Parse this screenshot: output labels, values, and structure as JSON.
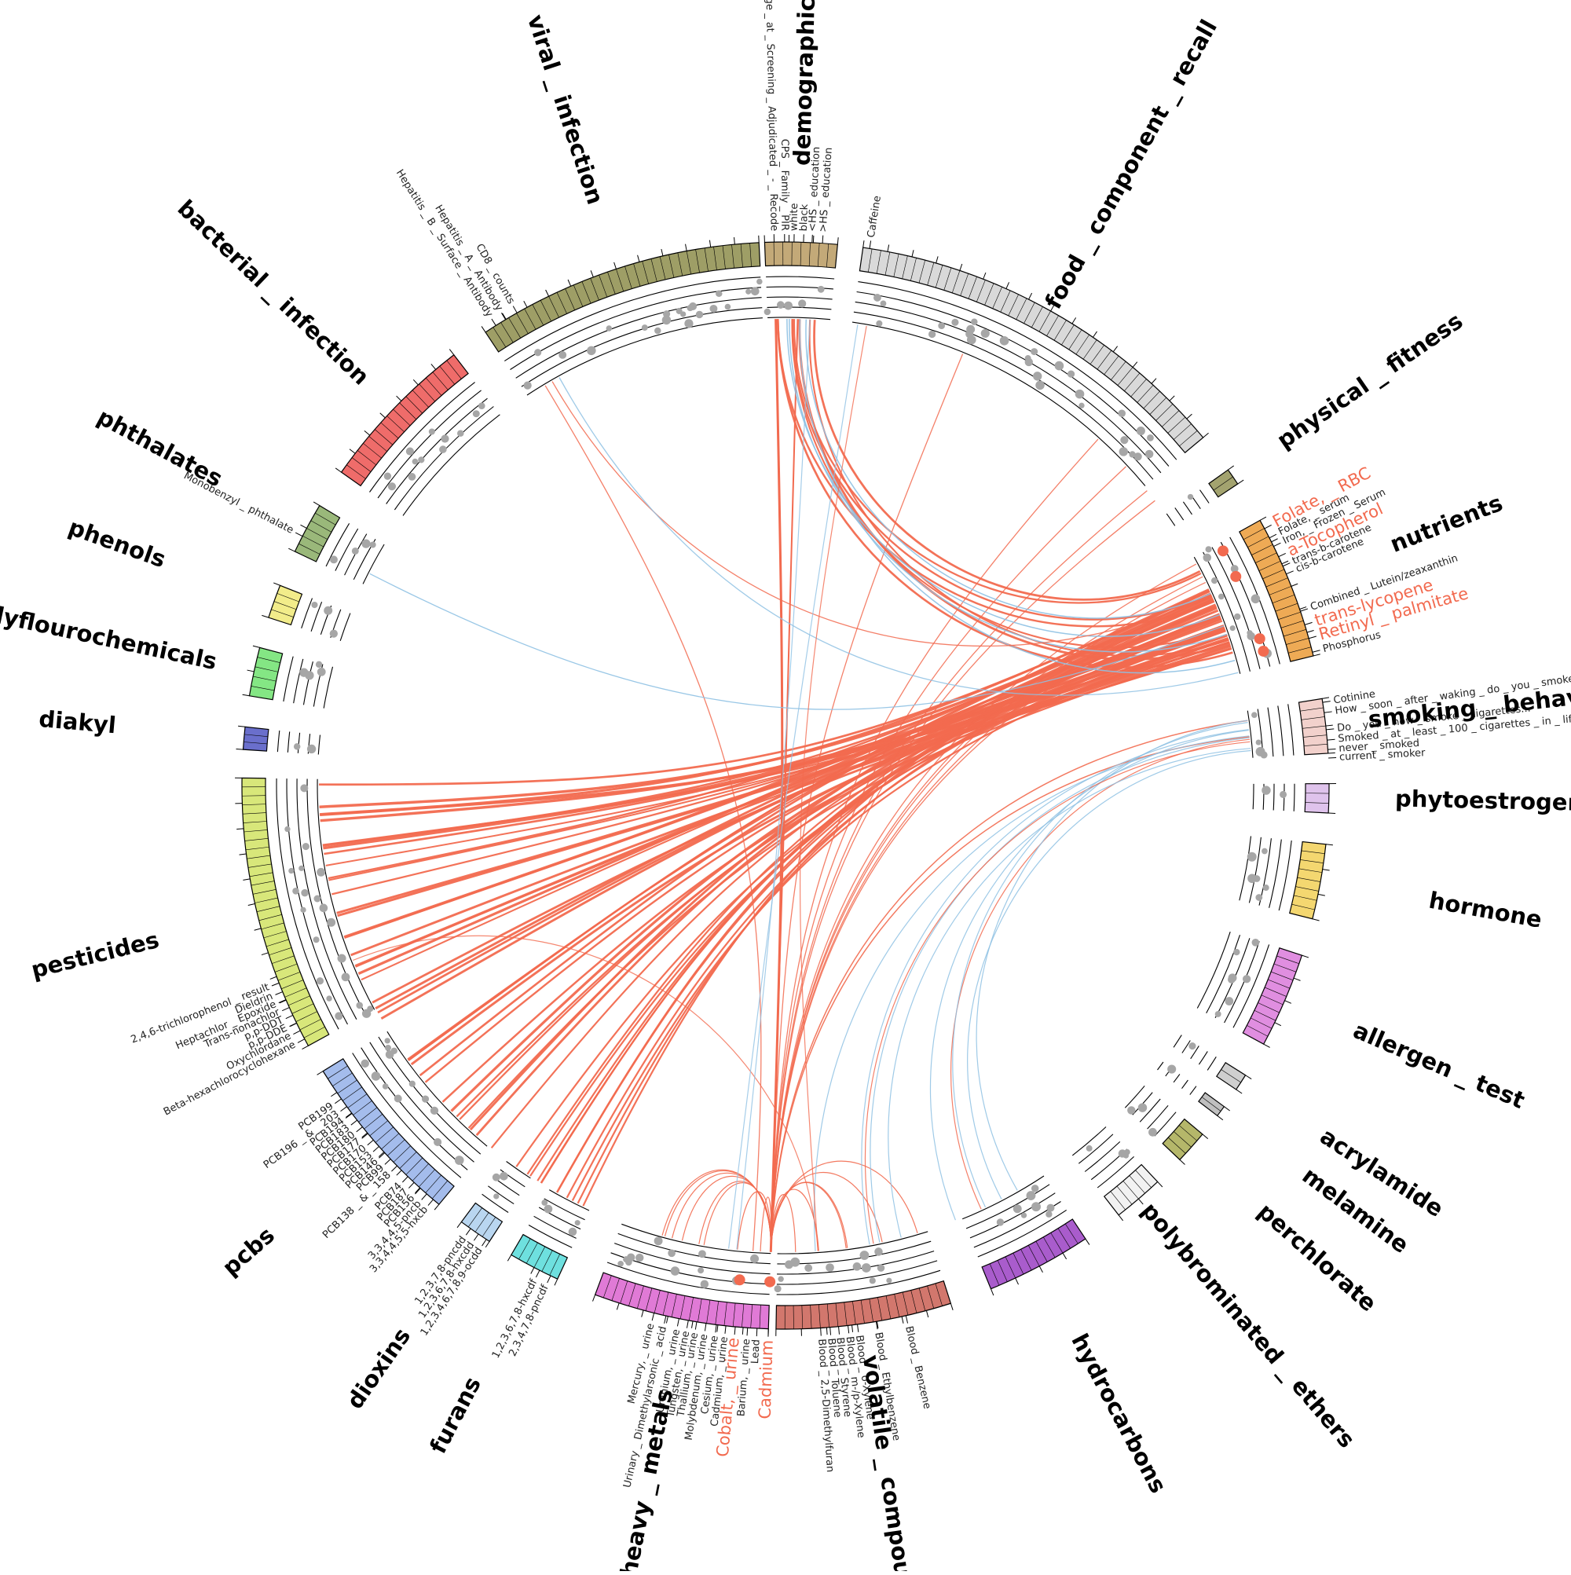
{
  "colors": {
    "positive_link": "#f26a4f",
    "negative_link": "#8ec1e3",
    "highlight_label": "#f26a4f",
    "point": "#a6a6a6",
    "ring": "#000000"
  },
  "sectors": [
    {
      "name": "demographics",
      "a0": -2.2,
      "a1": 5.5,
      "color": "#c3a978"
    },
    {
      "name": "food _ component _ recall",
      "a0": 8.2,
      "a1": 50.2,
      "color": "#d9d9d9"
    },
    {
      "name": "physical _ fitness",
      "a0": 54.5,
      "a1": 56.3,
      "color": "#a3a36f"
    },
    {
      "name": "nutrients",
      "a0": 60.8,
      "a1": 76.2,
      "color": "#eeaa55"
    },
    {
      "name": "smoking _ behavior",
      "a0": 80.8,
      "a1": 86.6,
      "color": "#f2d1cc"
    },
    {
      "name": "phytoestrogens",
      "a0": 89.8,
      "a1": 92.9,
      "color": "#dfc3ec"
    },
    {
      "name": "hormone",
      "a0": 96.2,
      "a1": 104.2,
      "color": "#f4d770"
    },
    {
      "name": "allergen _ test",
      "a0": 108.2,
      "a1": 118.4,
      "color": "#e08ee0"
    },
    {
      "name": "acrylamide",
      "a0": 122.2,
      "a1": 124.0,
      "color": "#cfcfcf"
    },
    {
      "name": "melamine",
      "a0": 126.2,
      "a1": 127.4,
      "color": "#bfbfbf"
    },
    {
      "name": "perchlorate",
      "a0": 129.9,
      "a1": 133.5,
      "color": "#b5b76a"
    },
    {
      "name": "polybrominated _ ethers",
      "a0": 136.8,
      "a1": 142.2,
      "color": "#f2f2f2"
    },
    {
      "name": "hydrocarbons",
      "a0": 146.5,
      "a1": 157.8,
      "color": "#a95ccc"
    },
    {
      "name": "volatile _ compounds",
      "a0": 162.3,
      "a1": 181.0,
      "color": "#d2776d"
    },
    {
      "name": "heavy _ metals",
      "a0": 181.8,
      "a1": 200.5,
      "color": "#e07ad6"
    },
    {
      "name": "furans",
      "a0": 204.8,
      "a1": 210.3,
      "color": "#6ee0df"
    },
    {
      "name": "dioxins",
      "a0": 213.0,
      "a1": 216.6,
      "color": "#b9d6f0"
    },
    {
      "name": "pcbs",
      "a0": 219.6,
      "a1": 238.3,
      "color": "#a4bcec"
    },
    {
      "name": "pesticides",
      "a0": 241.4,
      "a1": 270.8,
      "color": "#d8e77a"
    },
    {
      "name": "diakyl",
      "a0": 273.8,
      "a1": 276.2,
      "color": "#6a6fcc"
    },
    {
      "name": "polyflourochemicals",
      "a0": 279.5,
      "a1": 284.7,
      "color": "#84e684"
    },
    {
      "name": "phenols",
      "a0": 288.0,
      "a1": 291.6,
      "color": "#f2ec8a"
    },
    {
      "name": "phthalates",
      "a0": 295.5,
      "a1": 301.0,
      "color": "#9ab87a"
    },
    {
      "name": "bacterial _ infection",
      "a0": 305.2,
      "a1": 322.4,
      "color": "#ef6c6a"
    },
    {
      "name": "viral _ infection",
      "a0": 326.5,
      "a1": 357.2,
      "color": "#9e9e66"
    }
  ],
  "labels": [
    {
      "text": "Age _ at _ Screening _ Adjudicated _ - _ Recode",
      "a": -1.2,
      "hl": false
    },
    {
      "text": "CPS _ Family _ PIR",
      "a": -0.1,
      "hl": false
    },
    {
      "text": "white",
      "a": 0.9,
      "hl": false
    },
    {
      "text": "black",
      "a": 1.9,
      "hl": false
    },
    {
      "text": "<HS _ education",
      "a": 2.8,
      "hl": false
    },
    {
      "text": ">HS _ education",
      "a": 3.9,
      "hl": false
    },
    {
      "text": "Caffeine",
      "a": 8.9,
      "hl": false
    },
    {
      "text": "Folate, _ RBC",
      "a": 61.8,
      "hl": true
    },
    {
      "text": "Folate, _ serum",
      "a": 62.9,
      "hl": false
    },
    {
      "text": "Iron, _ Frozen _ Serum",
      "a": 63.9,
      "hl": false
    },
    {
      "text": "a-Tocopherol",
      "a": 65.1,
      "hl": true
    },
    {
      "text": "trans-b-carotene",
      "a": 66.2,
      "hl": false
    },
    {
      "text": "cis-b-carotene",
      "a": 67.1,
      "hl": false
    },
    {
      "text": "Combined _ Lutein/zeaxanthin",
      "a": 71.3,
      "hl": false
    },
    {
      "text": "trans-lycopene",
      "a": 72.8,
      "hl": true
    },
    {
      "text": "Retinyl _ palmitate",
      "a": 74.3,
      "hl": true
    },
    {
      "text": "Phosphorus",
      "a": 75.8,
      "hl": false
    },
    {
      "text": "Cotinine",
      "a": 81.2,
      "hl": false
    },
    {
      "text": "How _ soon _ after _ waking _ do _ you _ smoke",
      "a": 82.3,
      "hl": false
    },
    {
      "text": "Do _ you _ now _ smoke _ cigarettes...",
      "a": 84.1,
      "hl": false
    },
    {
      "text": "Smoked _ at _ least _ 100 _ cigarettes _ in _ life",
      "a": 85.2,
      "hl": false
    },
    {
      "text": "never _ smoked",
      "a": 86.2,
      "hl": false
    },
    {
      "text": "current _ smoker",
      "a": 87.1,
      "hl": false
    },
    {
      "text": "Blood _ Benzene",
      "a": 167.2,
      "hl": false
    },
    {
      "text": "Blood _ Ethylbenzene",
      "a": 170.4,
      "hl": false
    },
    {
      "text": "Blood _ o-Xylene",
      "a": 172.4,
      "hl": false
    },
    {
      "text": "Blood _ m-/p-Xylene",
      "a": 173.4,
      "hl": false
    },
    {
      "text": "Blood _ Styrene",
      "a": 174.4,
      "hl": false
    },
    {
      "text": "Blood _ Toluene",
      "a": 175.3,
      "hl": false
    },
    {
      "text": "Blood _ 2,5-Dimethylfuran",
      "a": 176.3,
      "hl": false
    },
    {
      "text": "Cadmium",
      "a": 181.8,
      "hl": true
    },
    {
      "text": "Lead",
      "a": 183.0,
      "hl": false
    },
    {
      "text": "Barium, _ urine",
      "a": 184.0,
      "hl": false
    },
    {
      "text": "Cobalt, _ urine",
      "a": 185.3,
      "hl": true
    },
    {
      "text": "Cadmium, _ urine",
      "a": 186.3,
      "hl": false
    },
    {
      "text": "Cesium, _ urine",
      "a": 187.3,
      "hl": false
    },
    {
      "text": "Molybdenum, _ urine",
      "a": 188.4,
      "hl": false
    },
    {
      "text": "Thallium, _ urine",
      "a": 189.4,
      "hl": false
    },
    {
      "text": "Tungsten, _ urine",
      "a": 190.3,
      "hl": false
    },
    {
      "text": "Uranium, _ urine",
      "a": 191.3,
      "hl": false
    },
    {
      "text": "Urinary _ Dimethylarsonic _ acid",
      "a": 192.7,
      "hl": false
    },
    {
      "text": "Mercury, _ urine",
      "a": 194.0,
      "hl": false
    },
    {
      "text": "2,3,4,7,8-pncdf",
      "a": 205.6,
      "hl": false
    },
    {
      "text": "1,2,3,6,7,8-hxcdf",
      "a": 206.9,
      "hl": false
    },
    {
      "text": "1,2,3,4,6,7,8,9-ocdd",
      "a": 213.4,
      "hl": false
    },
    {
      "text": "1,2,3,6,7,8-hxcdd",
      "a": 214.4,
      "hl": false
    },
    {
      "text": "1,2,3,7,8-pncdd",
      "a": 215.4,
      "hl": false
    },
    {
      "text": "3,3,4,4,5,5-hxcb",
      "a": 220.4,
      "hl": false
    },
    {
      "text": "3,3,4,4,5-pncb",
      "a": 221.3,
      "hl": false
    },
    {
      "text": "PCB156",
      "a": 222.2,
      "hl": false
    },
    {
      "text": "PCB187",
      "a": 223.1,
      "hl": false
    },
    {
      "text": "PCB74",
      "a": 224.0,
      "hl": false
    },
    {
      "text": "PCB138 _ & _ 158",
      "a": 225.6,
      "hl": false
    },
    {
      "text": "PCB99",
      "a": 226.6,
      "hl": false
    },
    {
      "text": "PCB146",
      "a": 227.5,
      "hl": false
    },
    {
      "text": "PCB153",
      "a": 228.4,
      "hl": false
    },
    {
      "text": "PCB170",
      "a": 229.3,
      "hl": false
    },
    {
      "text": "PCB177",
      "a": 230.2,
      "hl": false
    },
    {
      "text": "PCB180",
      "a": 231.1,
      "hl": false
    },
    {
      "text": "PCB183",
      "a": 232.0,
      "hl": false
    },
    {
      "text": "PCB194",
      "a": 232.9,
      "hl": false
    },
    {
      "text": "PCB196 _ & _ 203",
      "a": 233.8,
      "hl": false
    },
    {
      "text": "PCB199",
      "a": 234.8,
      "hl": false
    },
    {
      "text": "Beta-hexachlorocyclohexane",
      "a": 242.2,
      "hl": false
    },
    {
      "text": "Oxychlordane",
      "a": 243.2,
      "hl": false
    },
    {
      "text": "p,p-DDE",
      "a": 244.1,
      "hl": false
    },
    {
      "text": "p,p-DDT",
      "a": 245.0,
      "hl": false
    },
    {
      "text": "Trans-nonachlor",
      "a": 245.9,
      "hl": false
    },
    {
      "text": "Heptachlor _ Epoxide",
      "a": 246.8,
      "hl": false
    },
    {
      "text": "Dieldrin",
      "a": 247.7,
      "hl": false
    },
    {
      "text": "2,4,6-trichlorophenol _ result",
      "a": 248.7,
      "hl": false
    },
    {
      "text": "Monobenzyl _ phthalate",
      "a": 297.3,
      "hl": false
    },
    {
      "text": "Hepatitis _ B _ Surface _ Antibody",
      "a": 327.8,
      "hl": false
    },
    {
      "text": "Hepatitis _ A _ Antibody",
      "a": 329.0,
      "hl": false
    },
    {
      "text": "CD8 _ counts",
      "a": 330.4,
      "hl": false
    }
  ]
}
